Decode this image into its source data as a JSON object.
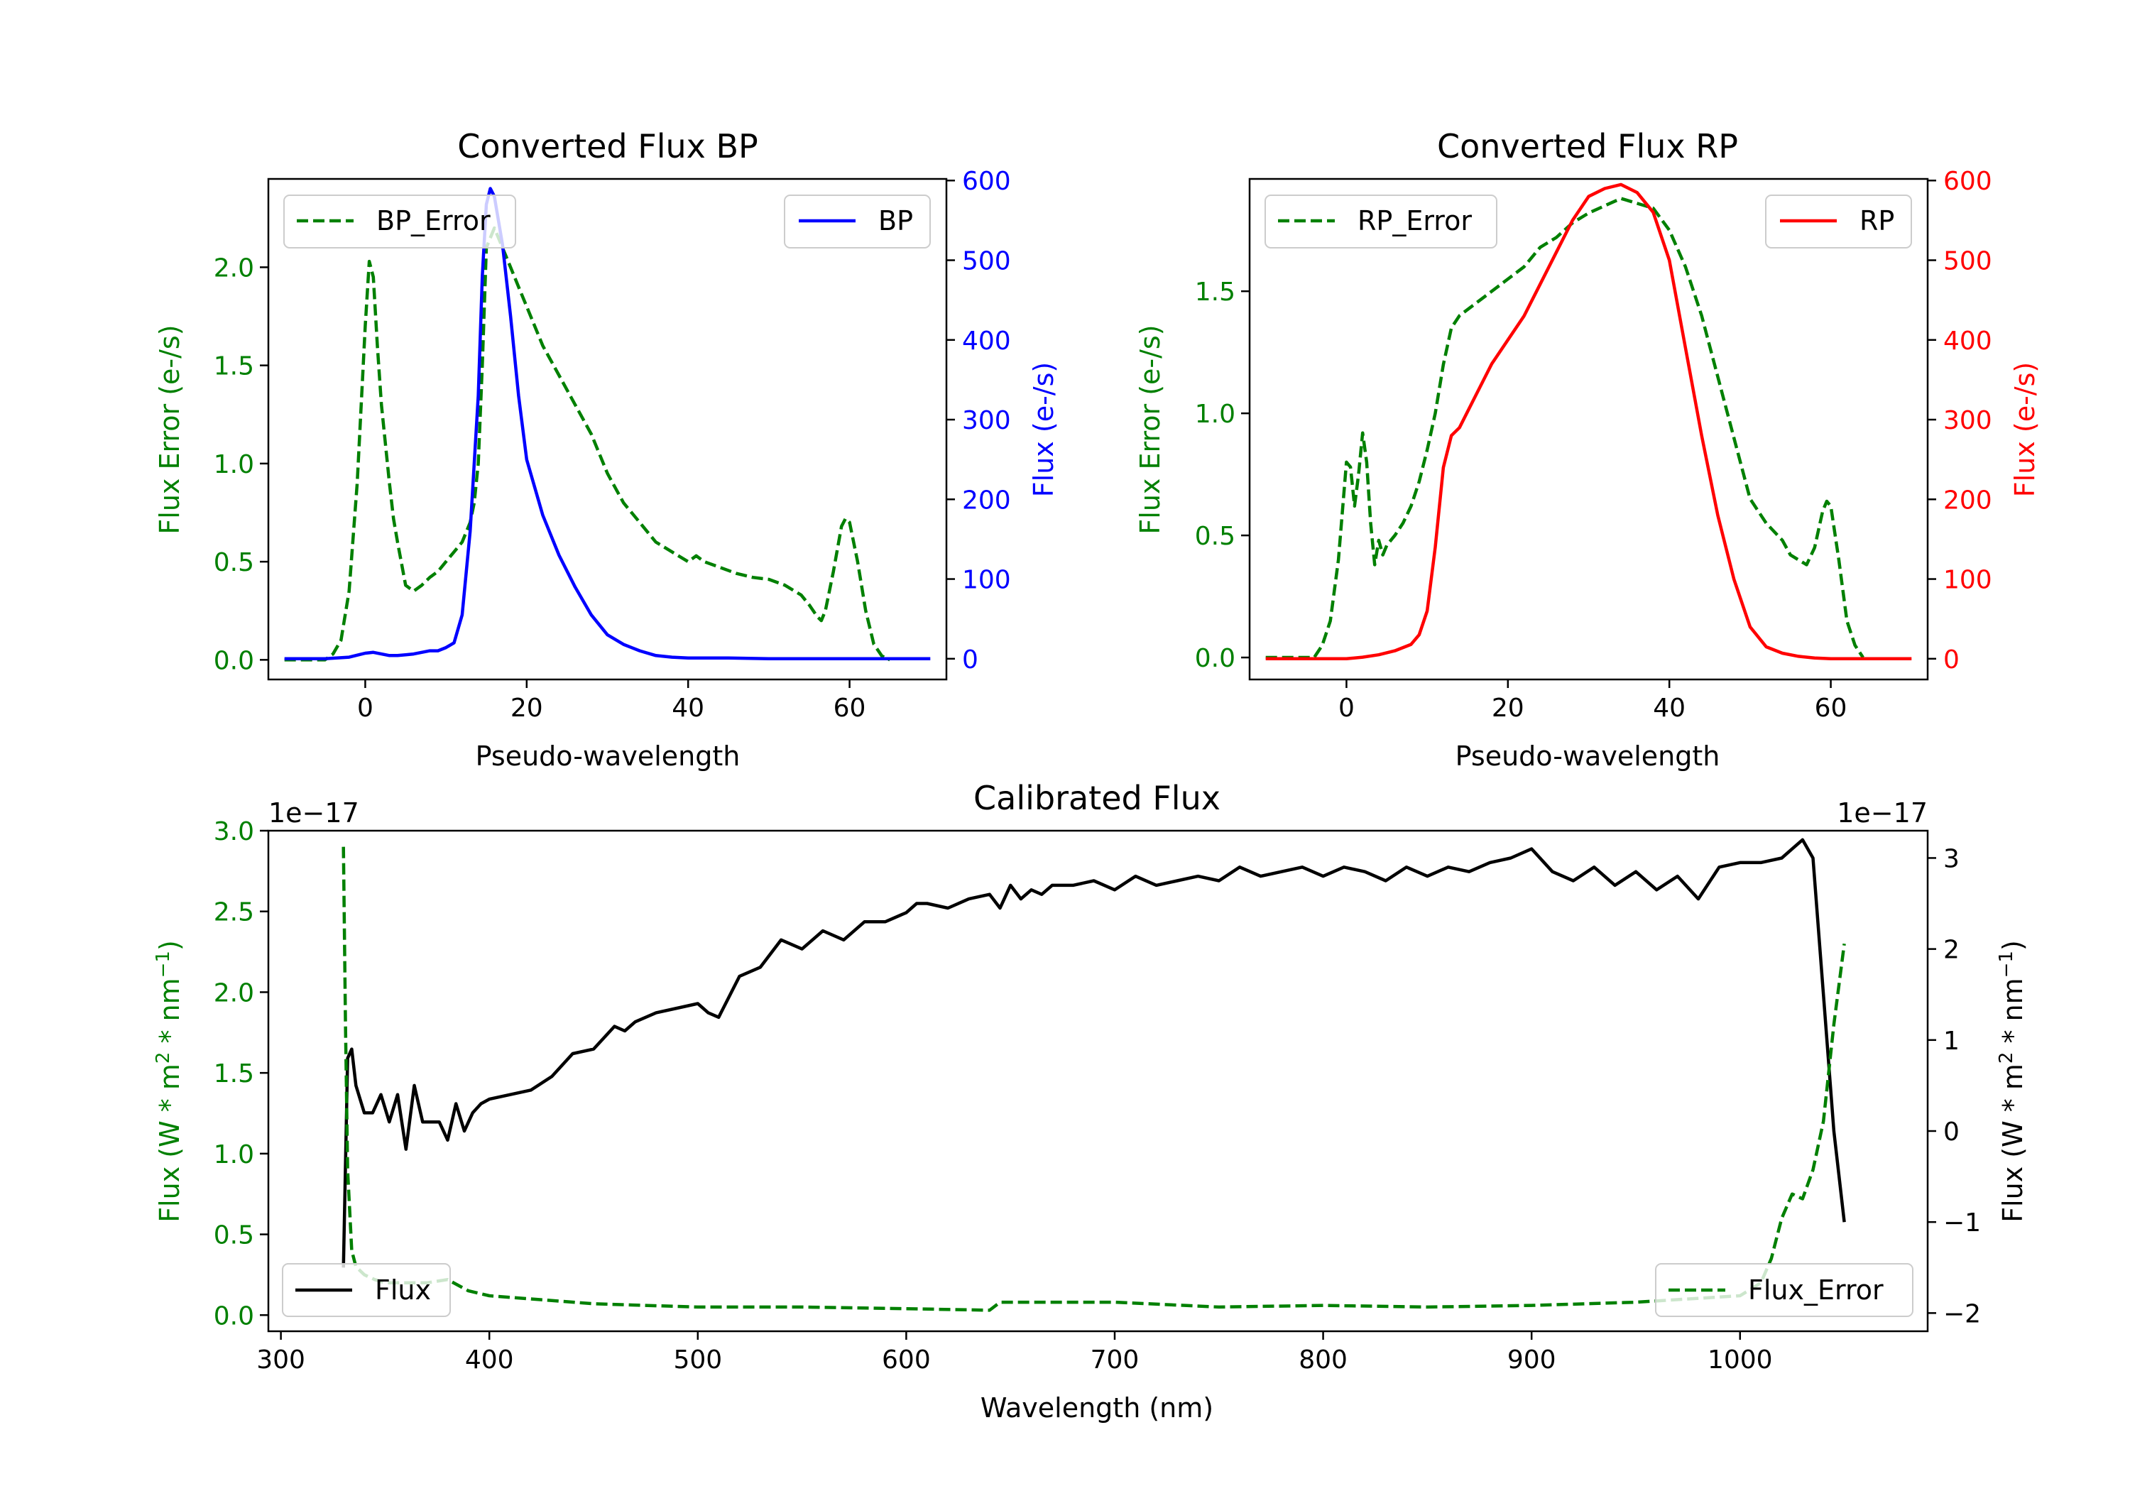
{
  "chart_data": [
    {
      "type": "line",
      "title": "Converted Flux BP",
      "xlabel": "Pseudo-wavelength",
      "ylabel_left": "Flux Error (e-/s)",
      "ylabel_right": "Flux (e-/s)",
      "xlim": [
        -12,
        72
      ],
      "ylim_left": [
        -0.1,
        2.45
      ],
      "ylim_right": [
        -26,
        602
      ],
      "xticks": [
        0,
        20,
        40,
        60
      ],
      "yticks_left": [
        0.0,
        0.5,
        1.0,
        1.5,
        2.0
      ],
      "yticks_right": [
        0,
        100,
        200,
        300,
        400,
        500,
        600
      ],
      "colors": {
        "left": "#008000",
        "right": "#0000ff"
      },
      "legend_left": {
        "label": "BP_Error",
        "placement": "top-left"
      },
      "legend_right": {
        "label": "BP",
        "placement": "top-right"
      },
      "series": [
        {
          "name": "BP_Error",
          "axis": "left",
          "style": "dashed",
          "color": "#008000",
          "x": [
            -10,
            -5,
            -4,
            -3,
            -2,
            -1,
            0,
            0.5,
            1,
            1.5,
            2,
            3,
            3.5,
            4,
            5,
            6,
            7,
            8,
            9,
            10,
            11,
            12,
            13,
            13.5,
            14,
            14.5,
            15,
            16,
            17,
            18,
            19,
            20,
            22,
            24,
            26,
            28,
            30,
            32,
            34,
            36,
            38,
            40,
            41,
            42,
            44,
            46,
            48,
            50,
            52,
            54,
            55,
            56,
            56.5,
            57,
            58,
            59,
            59.5,
            60,
            61,
            62,
            63,
            64,
            65
          ],
          "values": [
            0.0,
            0.0,
            0.03,
            0.1,
            0.35,
            0.9,
            1.7,
            2.03,
            1.95,
            1.6,
            1.3,
            0.9,
            0.72,
            0.6,
            0.38,
            0.35,
            0.38,
            0.42,
            0.45,
            0.5,
            0.55,
            0.6,
            0.7,
            0.8,
            1.0,
            1.5,
            2.1,
            2.2,
            2.1,
            2.0,
            1.9,
            1.8,
            1.6,
            1.45,
            1.3,
            1.15,
            0.95,
            0.8,
            0.7,
            0.6,
            0.55,
            0.5,
            0.53,
            0.5,
            0.47,
            0.44,
            0.42,
            0.41,
            0.38,
            0.33,
            0.28,
            0.22,
            0.2,
            0.25,
            0.45,
            0.68,
            0.72,
            0.7,
            0.5,
            0.25,
            0.08,
            0.02,
            0.0
          ]
        },
        {
          "name": "BP",
          "axis": "right",
          "style": "solid",
          "color": "#0000ff",
          "x": [
            -10,
            -5,
            -2,
            0,
            1,
            2,
            3,
            4,
            5,
            6,
            7,
            8,
            9,
            10,
            11,
            12,
            13,
            14,
            14.5,
            15,
            15.5,
            16,
            17,
            18,
            19,
            20,
            22,
            24,
            26,
            28,
            30,
            32,
            34,
            36,
            38,
            40,
            45,
            50,
            55,
            60,
            65,
            70
          ],
          "values": [
            0,
            0,
            2,
            7,
            8,
            6,
            4,
            4,
            5,
            6,
            8,
            10,
            10,
            14,
            20,
            55,
            160,
            330,
            480,
            570,
            590,
            580,
            520,
            430,
            330,
            250,
            180,
            130,
            90,
            55,
            30,
            18,
            10,
            4,
            2,
            1,
            1,
            0,
            0,
            0,
            0,
            0
          ]
        }
      ]
    },
    {
      "type": "line",
      "title": "Converted Flux RP",
      "xlabel": "Pseudo-wavelength",
      "ylabel_left": "Flux Error (e-/s)",
      "ylabel_right": "Flux (e-/s)",
      "xlim": [
        -12,
        72
      ],
      "ylim_left": [
        -0.09,
        1.96
      ],
      "ylim_right": [
        -26,
        602
      ],
      "xticks": [
        0,
        20,
        40,
        60
      ],
      "yticks_left": [
        0.0,
        0.5,
        1.0,
        1.5
      ],
      "yticks_right": [
        0,
        100,
        200,
        300,
        400,
        500,
        600
      ],
      "colors": {
        "left": "#008000",
        "right": "#ff0000"
      },
      "legend_left": {
        "label": "RP_Error",
        "placement": "top-left"
      },
      "legend_right": {
        "label": "RP",
        "placement": "top-right"
      },
      "series": [
        {
          "name": "RP_Error",
          "axis": "left",
          "style": "dashed",
          "color": "#008000",
          "x": [
            -10,
            -4,
            -3,
            -2,
            -1,
            0,
            0.5,
            1,
            1.5,
            2,
            2.5,
            3,
            3.5,
            4,
            4.5,
            5,
            6,
            7,
            8,
            9,
            10,
            11,
            12,
            13,
            14,
            16,
            18,
            20,
            22,
            24,
            26,
            28,
            30,
            32,
            34,
            36,
            38,
            40,
            42,
            44,
            46,
            48,
            50,
            52,
            54,
            55,
            56,
            57,
            58,
            59,
            59.5,
            60,
            61,
            62,
            63,
            64
          ],
          "values": [
            0.0,
            0.0,
            0.05,
            0.15,
            0.4,
            0.8,
            0.78,
            0.62,
            0.75,
            0.92,
            0.8,
            0.55,
            0.38,
            0.48,
            0.42,
            0.46,
            0.5,
            0.55,
            0.62,
            0.72,
            0.85,
            1.0,
            1.2,
            1.35,
            1.4,
            1.45,
            1.5,
            1.55,
            1.6,
            1.68,
            1.72,
            1.78,
            1.82,
            1.85,
            1.88,
            1.86,
            1.84,
            1.75,
            1.6,
            1.4,
            1.15,
            0.9,
            0.65,
            0.55,
            0.48,
            0.42,
            0.4,
            0.38,
            0.45,
            0.6,
            0.64,
            0.62,
            0.4,
            0.15,
            0.05,
            0.0
          ]
        },
        {
          "name": "RP",
          "axis": "right",
          "style": "solid",
          "color": "#ff0000",
          "x": [
            -10,
            -5,
            0,
            2,
            4,
            6,
            8,
            9,
            10,
            11,
            12,
            13,
            14,
            16,
            18,
            20,
            22,
            24,
            26,
            28,
            30,
            32,
            34,
            36,
            38,
            40,
            42,
            44,
            46,
            48,
            50,
            52,
            54,
            56,
            58,
            60,
            65,
            70
          ],
          "values": [
            0,
            0,
            0,
            2,
            5,
            10,
            18,
            30,
            60,
            140,
            240,
            280,
            290,
            330,
            370,
            400,
            430,
            470,
            510,
            550,
            580,
            590,
            595,
            585,
            560,
            500,
            390,
            280,
            180,
            100,
            40,
            15,
            7,
            3,
            1,
            0,
            0,
            0
          ]
        }
      ]
    },
    {
      "type": "line",
      "title": "Calibrated Flux",
      "xlabel": "Wavelength (nm)",
      "ylabel_left": "Flux (W * m",
      "ylabel_right": "Flux (W * m",
      "ylabel_sup1": "2",
      "ylabel_mid": " * nm",
      "ylabel_sup2": "−1",
      "ylabel_end": ")",
      "offset_left": "1e−17",
      "offset_right": "1e−17",
      "xlim": [
        294,
        1090
      ],
      "ylim_left": [
        -0.1,
        3.0
      ],
      "ylim_right": [
        -2.2,
        3.3
      ],
      "xticks": [
        300,
        400,
        500,
        600,
        700,
        800,
        900,
        1000
      ],
      "yticks_left": [
        0.0,
        0.5,
        1.0,
        1.5,
        2.0,
        2.5,
        3.0
      ],
      "yticks_right": [
        -2,
        -1,
        0,
        1,
        2,
        3
      ],
      "colors": {
        "left": "#008000",
        "right": "#000000"
      },
      "legend_left": {
        "label": "Flux",
        "placement": "bottom-left"
      },
      "legend_right": {
        "label": "Flux_Error",
        "placement": "bottom-right"
      },
      "series": [
        {
          "name": "Flux",
          "axis": "right",
          "style": "solid",
          "color": "#000000",
          "x": [
            330,
            332,
            334,
            336,
            340,
            344,
            348,
            352,
            356,
            360,
            364,
            368,
            372,
            376,
            380,
            384,
            388,
            392,
            396,
            400,
            410,
            420,
            430,
            440,
            450,
            460,
            465,
            470,
            480,
            490,
            500,
            505,
            510,
            520,
            530,
            540,
            550,
            560,
            570,
            580,
            590,
            600,
            605,
            610,
            620,
            630,
            640,
            645,
            650,
            655,
            660,
            665,
            670,
            680,
            690,
            700,
            710,
            720,
            730,
            740,
            750,
            760,
            770,
            780,
            790,
            800,
            810,
            820,
            830,
            840,
            850,
            860,
            870,
            880,
            890,
            900,
            910,
            920,
            930,
            940,
            950,
            960,
            970,
            980,
            990,
            1000,
            1010,
            1020,
            1025,
            1030,
            1035,
            1040,
            1045,
            1050
          ],
          "values": [
            -1.5,
            0.8,
            0.9,
            0.5,
            0.2,
            0.2,
            0.4,
            0.1,
            0.4,
            -0.2,
            0.5,
            0.1,
            0.1,
            0.1,
            -0.1,
            0.3,
            0.0,
            0.2,
            0.3,
            0.35,
            0.4,
            0.45,
            0.6,
            0.85,
            0.9,
            1.15,
            1.1,
            1.2,
            1.3,
            1.35,
            1.4,
            1.3,
            1.25,
            1.7,
            1.8,
            2.1,
            2.0,
            2.2,
            2.1,
            2.3,
            2.3,
            2.4,
            2.5,
            2.5,
            2.45,
            2.55,
            2.6,
            2.45,
            2.7,
            2.55,
            2.65,
            2.6,
            2.7,
            2.7,
            2.75,
            2.65,
            2.8,
            2.7,
            2.75,
            2.8,
            2.75,
            2.9,
            2.8,
            2.85,
            2.9,
            2.8,
            2.9,
            2.85,
            2.75,
            2.9,
            2.8,
            2.9,
            2.85,
            2.95,
            3.0,
            3.1,
            2.85,
            2.75,
            2.9,
            2.7,
            2.85,
            2.65,
            2.8,
            2.55,
            2.9,
            2.95,
            2.95,
            3.0,
            3.1,
            3.2,
            3.0,
            1.5,
            0.0,
            -1.0
          ]
        },
        {
          "name": "Flux_Error",
          "axis": "left",
          "style": "dashed",
          "color": "#008000",
          "x": [
            330,
            331,
            332,
            334,
            336,
            340,
            345,
            350,
            360,
            370,
            380,
            390,
            400,
            450,
            500,
            550,
            600,
            640,
            645,
            700,
            750,
            800,
            850,
            900,
            950,
            1000,
            1010,
            1015,
            1020,
            1025,
            1030,
            1035,
            1040,
            1045,
            1050
          ],
          "values": [
            2.9,
            1.8,
            0.9,
            0.4,
            0.3,
            0.25,
            0.22,
            0.2,
            0.2,
            0.2,
            0.22,
            0.15,
            0.12,
            0.07,
            0.05,
            0.05,
            0.04,
            0.03,
            0.08,
            0.08,
            0.05,
            0.06,
            0.05,
            0.06,
            0.08,
            0.12,
            0.2,
            0.35,
            0.6,
            0.75,
            0.72,
            0.9,
            1.2,
            1.8,
            2.3
          ]
        }
      ]
    }
  ]
}
